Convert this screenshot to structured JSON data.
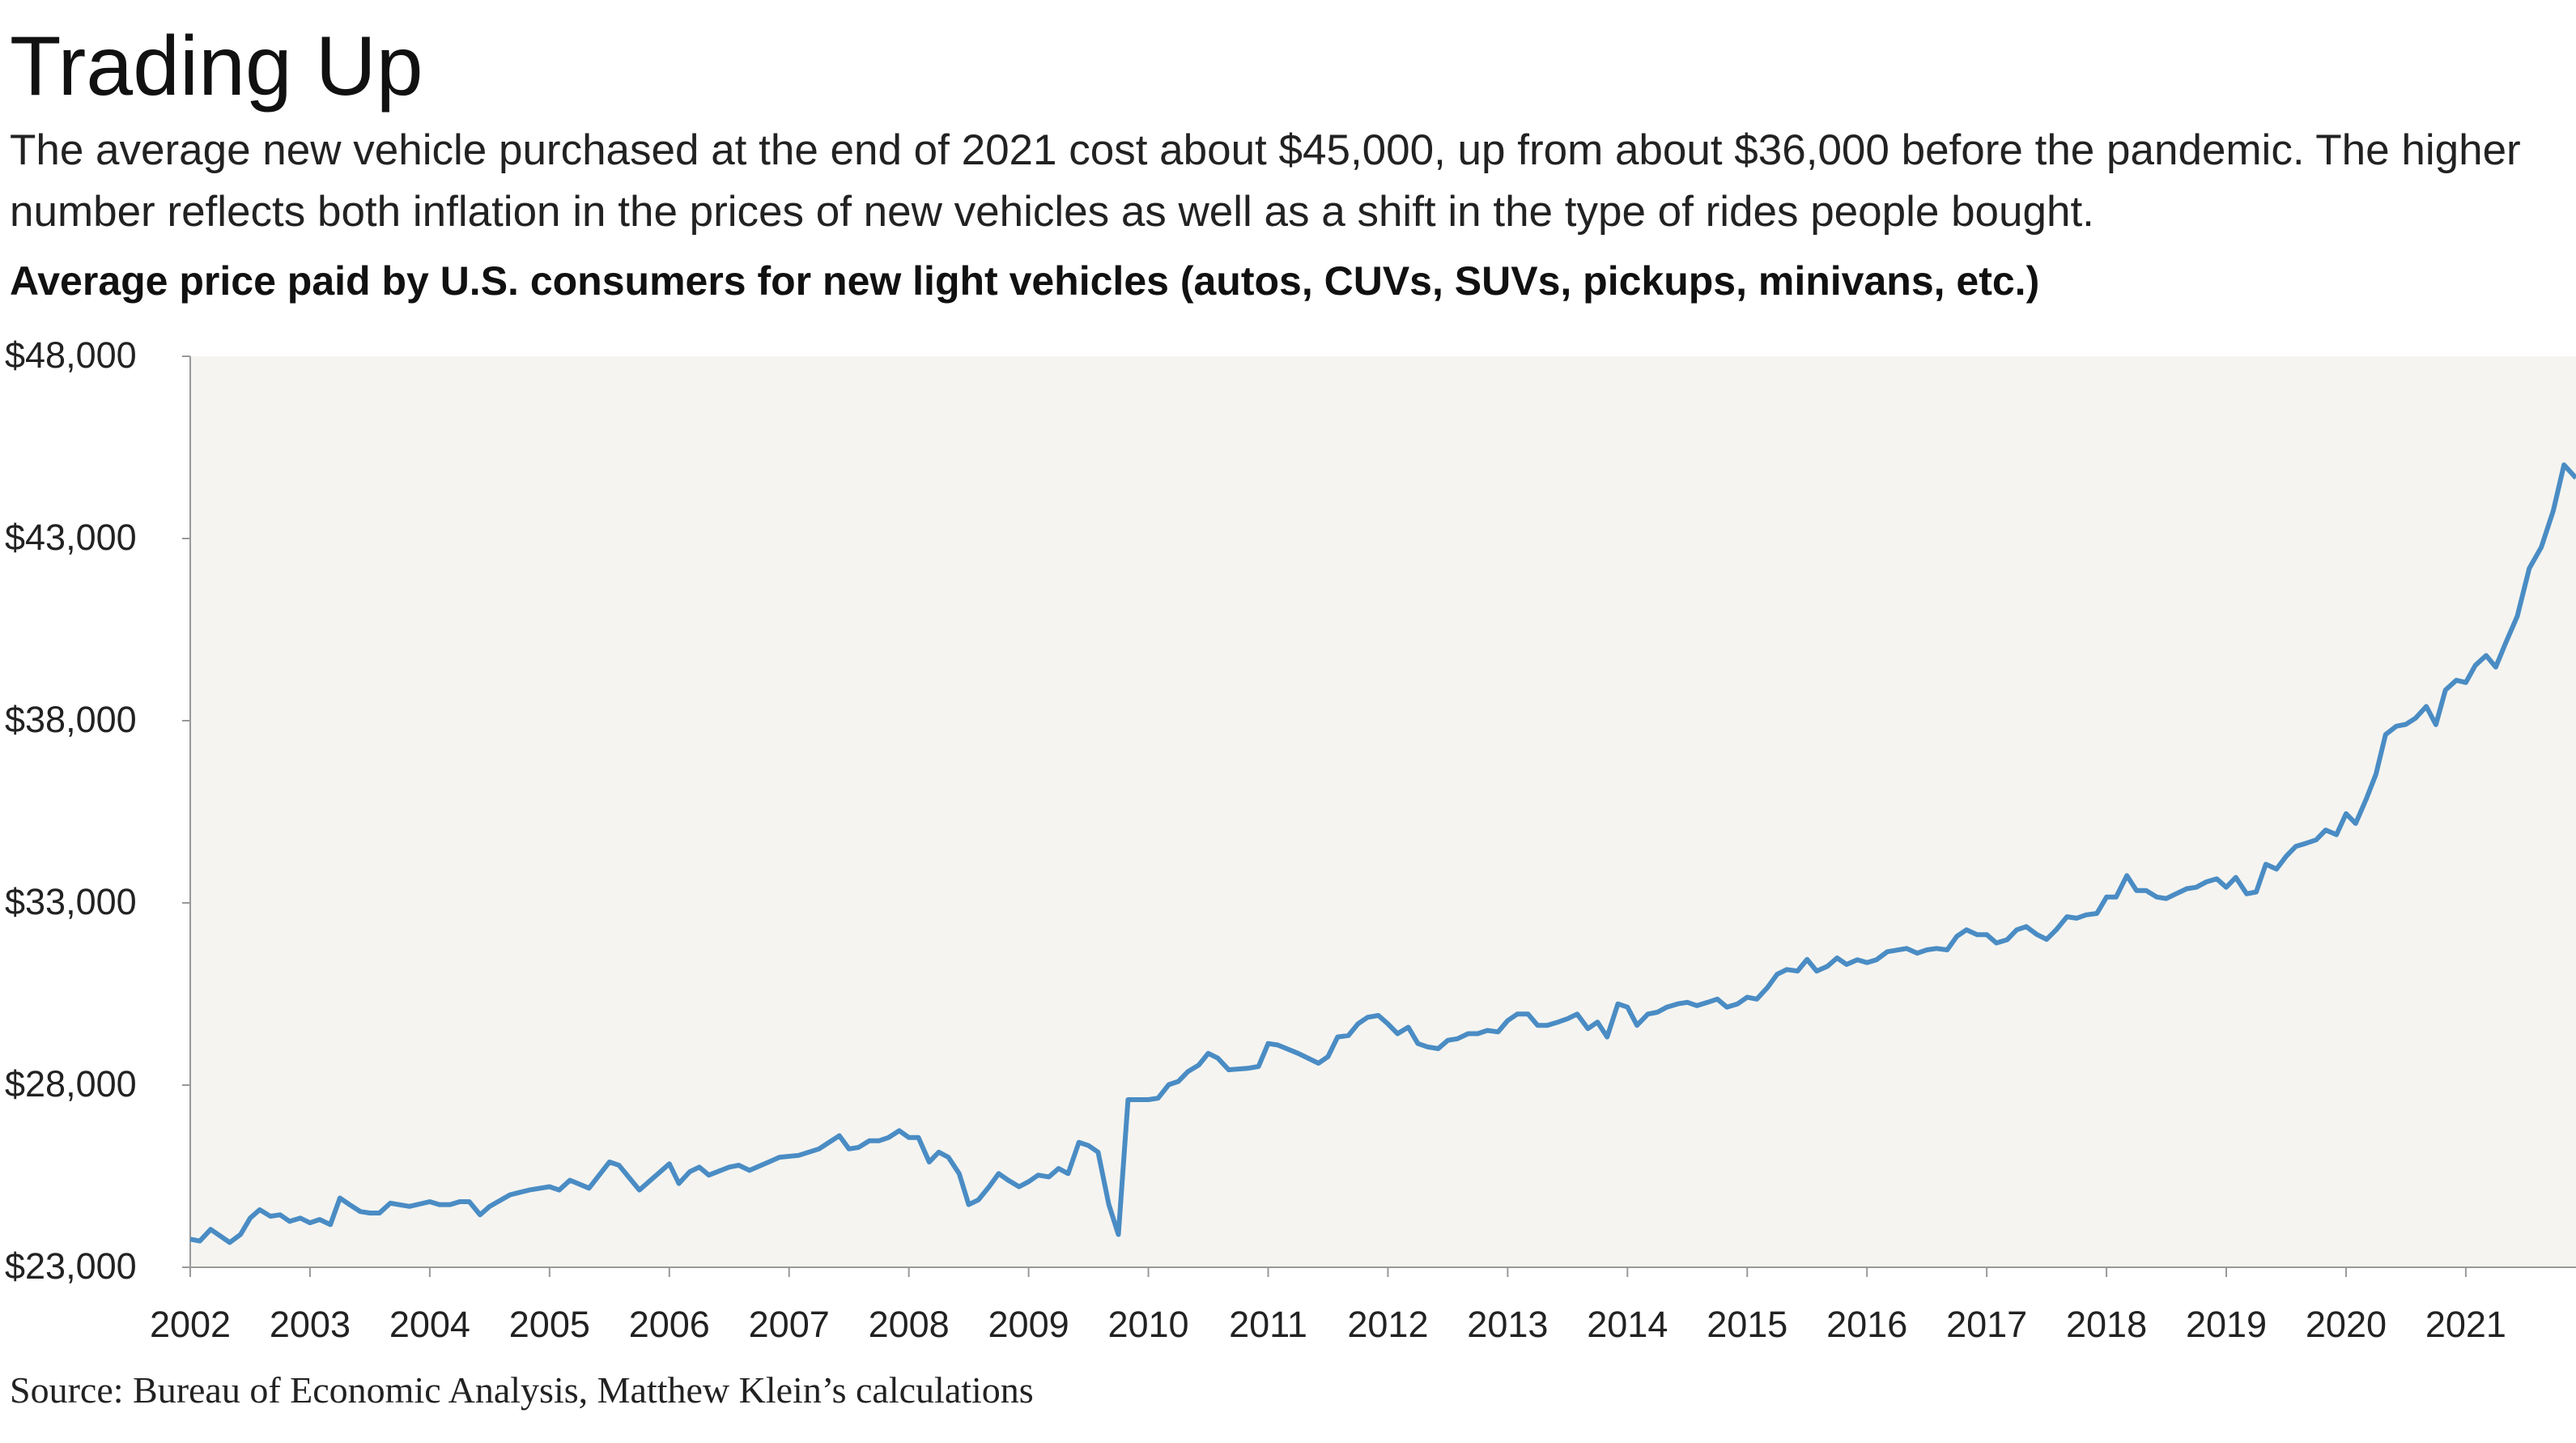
{
  "chart_data": {
    "type": "line",
    "title": "Trading Up",
    "description": "The average new vehicle purchased at the end of 2021 cost about $45,000, up from about $36,000 before the pandemic. The higher number reflects both inflation in the prices of new vehicles as well as a shift in the type of rides people bought.",
    "subtitle": "Average price paid by U.S. consumers for new light vehicles (autos, CUVs, SUVs, pickups, minivans, etc.)",
    "source": "Source: Bureau of Economic Analysis, Matthew Klein’s calculations",
    "color": "#4a8cc4",
    "x": [
      2002,
      2002.08,
      2002.17,
      2002.33,
      2002.42,
      2002.5,
      2002.58,
      2002.67,
      2002.75,
      2002.83,
      2002.92,
      2003,
      2003.08,
      2003.17,
      2003.25,
      2003.33,
      2003.42,
      2003.5,
      2003.58,
      2003.67,
      2003.83,
      2004,
      2004.08,
      2004.17,
      2004.25,
      2004.33,
      2004.42,
      2004.5,
      2004.67,
      2004.83,
      2005,
      2005.08,
      2005.17,
      2005.33,
      2005.5,
      2005.58,
      2005.67,
      2005.75,
      2005.83,
      2006,
      2006.08,
      2006.17,
      2006.25,
      2006.33,
      2006.5,
      2006.58,
      2006.67,
      2006.83,
      2006.92,
      2007.08,
      2007.25,
      2007.42,
      2007.5,
      2007.58,
      2007.67,
      2007.75,
      2007.83,
      2007.92,
      2008,
      2008.08,
      2008.17,
      2008.25,
      2008.33,
      2008.42,
      2008.5,
      2008.58,
      2008.67,
      2008.75,
      2008.83,
      2008.92,
      2009,
      2009.08,
      2009.17,
      2009.25,
      2009.33,
      2009.42,
      2009.5,
      2009.58,
      2009.67,
      2009.75,
      2009.83,
      2010,
      2010.08,
      2010.17,
      2010.25,
      2010.33,
      2010.42,
      2010.5,
      2010.58,
      2010.67,
      2010.83,
      2010.92,
      2011,
      2011.08,
      2011.25,
      2011.42,
      2011.5,
      2011.58,
      2011.67,
      2011.75,
      2011.83,
      2011.92,
      2012,
      2012.08,
      2012.17,
      2012.25,
      2012.33,
      2012.42,
      2012.5,
      2012.58,
      2012.67,
      2012.75,
      2012.83,
      2012.92,
      2013,
      2013.08,
      2013.17,
      2013.25,
      2013.33,
      2013.42,
      2013.5,
      2013.58,
      2013.67,
      2013.75,
      2013.83,
      2013.92,
      2014,
      2014.08,
      2014.17,
      2014.25,
      2014.33,
      2014.42,
      2014.5,
      2014.58,
      2014.67,
      2014.75,
      2014.83,
      2014.92,
      2015,
      2015.08,
      2015.17,
      2015.25,
      2015.33,
      2015.42,
      2015.5,
      2015.58,
      2015.67,
      2015.75,
      2015.83,
      2015.92,
      2016,
      2016.08,
      2016.17,
      2016.33,
      2016.42,
      2016.5,
      2016.58,
      2016.67,
      2016.75,
      2016.83,
      2016.92,
      2017,
      2017.08,
      2017.17,
      2017.25,
      2017.33,
      2017.42,
      2017.5,
      2017.58,
      2017.67,
      2017.75,
      2017.83,
      2017.92,
      2018,
      2018.08,
      2018.17,
      2018.25,
      2018.33,
      2018.42,
      2018.5,
      2018.58,
      2018.67,
      2018.75,
      2018.83,
      2018.92,
      2019,
      2019.08,
      2019.17,
      2019.25,
      2019.33,
      2019.42,
      2019.5,
      2019.58,
      2019.67,
      2019.75,
      2019.83,
      2019.92,
      2020,
      2020.08,
      2020.17,
      2020.25,
      2020.33,
      2020.42,
      2020.5,
      2020.58,
      2020.67,
      2020.75,
      2020.83,
      2020.92,
      2021,
      2021.08,
      2021.17,
      2021.25,
      2021.33,
      2021.43,
      2021.53,
      2021.63,
      2021.73,
      2021.82,
      2021.92
    ],
    "values": [
      23770,
      23720,
      24040,
      23680,
      23900,
      24350,
      24580,
      24400,
      24440,
      24260,
      24350,
      24220,
      24310,
      24170,
      24900,
      24720,
      24530,
      24490,
      24490,
      24760,
      24670,
      24800,
      24720,
      24720,
      24800,
      24800,
      24440,
      24670,
      24990,
      25120,
      25210,
      25120,
      25390,
      25170,
      25890,
      25800,
      25440,
      25120,
      25350,
      25840,
      25300,
      25620,
      25750,
      25530,
      25750,
      25800,
      25660,
      25890,
      26020,
      26070,
      26250,
      26610,
      26250,
      26290,
      26470,
      26470,
      26560,
      26750,
      26560,
      26560,
      25890,
      26160,
      26020,
      25570,
      24720,
      24850,
      25210,
      25570,
      25390,
      25210,
      25350,
      25530,
      25480,
      25710,
      25570,
      26430,
      26340,
      26160,
      24720,
      23900,
      27600,
      27600,
      27640,
      28010,
      28100,
      28370,
      28550,
      28870,
      28740,
      28420,
      28460,
      28510,
      29140,
      29100,
      28870,
      28600,
      28780,
      29320,
      29360,
      29680,
      29860,
      29910,
      29680,
      29410,
      29590,
      29140,
      29050,
      29000,
      29230,
      29270,
      29410,
      29410,
      29500,
      29460,
      29770,
      29950,
      29950,
      29640,
      29640,
      29730,
      29820,
      29950,
      29550,
      29730,
      29320,
      30230,
      30140,
      29640,
      29950,
      30000,
      30140,
      30230,
      30270,
      30180,
      30270,
      30360,
      30140,
      30230,
      30410,
      30360,
      30680,
      31040,
      31170,
      31130,
      31450,
      31130,
      31260,
      31490,
      31310,
      31440,
      31360,
      31440,
      31660,
      31750,
      31620,
      31710,
      31750,
      31710,
      32080,
      32260,
      32130,
      32130,
      31900,
      31990,
      32260,
      32350,
      32130,
      32000,
      32260,
      32620,
      32580,
      32670,
      32710,
      33160,
      33160,
      33750,
      33340,
      33340,
      33160,
      33120,
      33250,
      33390,
      33430,
      33570,
      33660,
      33430,
      33700,
      33250,
      33300,
      34060,
      33930,
      34280,
      34550,
      34640,
      34730,
      35000,
      34870,
      35450,
      35180,
      35860,
      36530,
      37620,
      37850,
      37900,
      38070,
      38390,
      37890,
      38840,
      39110,
      39050,
      39520,
      39790,
      39470,
      40110,
      40870,
      42180,
      42760,
      43760,
      45020,
      44660
    ],
    "xlim": [
      2002,
      2021.92
    ],
    "xticks": [
      2002,
      2003,
      2004,
      2005,
      2006,
      2007,
      2008,
      2009,
      2010,
      2011,
      2012,
      2013,
      2014,
      2015,
      2016,
      2017,
      2018,
      2019,
      2020,
      2021
    ],
    "ylim": [
      23000,
      48000
    ],
    "yticks": [
      {
        "value": 23000,
        "label": "$23,000"
      },
      {
        "value": 28000,
        "label": "$28,000"
      },
      {
        "value": 33000,
        "label": "$33,000"
      },
      {
        "value": 38000,
        "label": "$38,000"
      },
      {
        "value": 43000,
        "label": "$43,000"
      },
      {
        "value": 48000,
        "label": "$48,000"
      }
    ]
  }
}
